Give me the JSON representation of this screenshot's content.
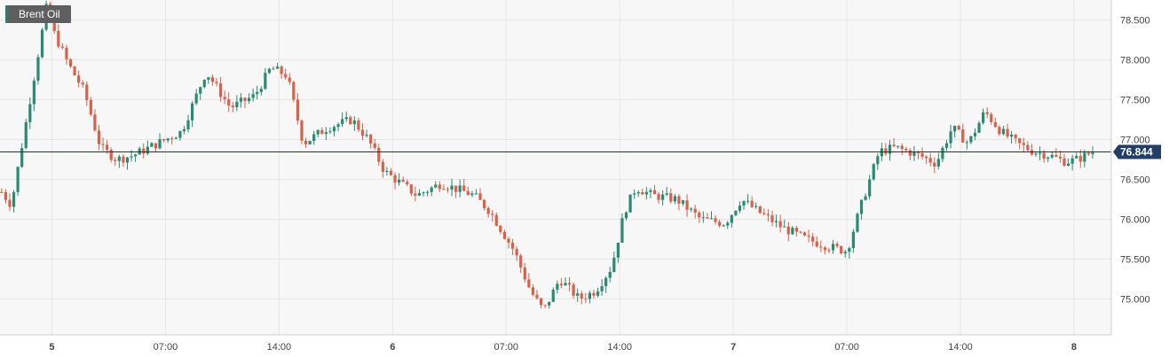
{
  "instrument": {
    "name": "Brent Oil"
  },
  "colors": {
    "up": "#2a8a72",
    "down": "#d9604a",
    "grid": "#e6e6e6",
    "price_line": "#1f2f5a",
    "price_tag_bg": "#233d66",
    "axis": "#cfcfcf",
    "plot_bg": "#f7f7f7"
  },
  "chart_data": {
    "type": "candlestick",
    "title": "Brent Oil",
    "last_price": 76.844,
    "last_price_label": "76.844",
    "y_ticks": [
      "78.500",
      "78.000",
      "77.500",
      "77.000",
      "76.500",
      "76.000",
      "75.500",
      "75.000"
    ],
    "y_tick_values": [
      78.5,
      78.0,
      77.5,
      77.0,
      76.5,
      76.0,
      75.5,
      75.0
    ],
    "ylim": [
      74.55,
      78.75
    ],
    "x_ticks": [
      {
        "label": "5",
        "bold": true,
        "hour": 0
      },
      {
        "label": "07:00",
        "bold": false,
        "hour": 7
      },
      {
        "label": "14:00",
        "bold": false,
        "hour": 14
      },
      {
        "label": "6",
        "bold": true,
        "hour": 21
      },
      {
        "label": "07:00",
        "bold": false,
        "hour": 28
      },
      {
        "label": "14:00",
        "bold": false,
        "hour": 35
      },
      {
        "label": "7",
        "bold": true,
        "hour": 42
      },
      {
        "label": "07:00",
        "bold": false,
        "hour": 49
      },
      {
        "label": "14:00",
        "bold": false,
        "hour": 56
      },
      {
        "label": "8",
        "bold": true,
        "hour": 63
      }
    ],
    "x_range_hours": [
      -3.2,
      65.3
    ],
    "grid": true,
    "keypoints": [
      [
        -3.1,
        76.34
      ],
      [
        -2.5,
        76.18
      ],
      [
        -0.3,
        78.7
      ],
      [
        0.1,
        78.35
      ],
      [
        1.0,
        77.95
      ],
      [
        2.0,
        77.6
      ],
      [
        3.0,
        76.9
      ],
      [
        4.0,
        76.75
      ],
      [
        5.0,
        76.8
      ],
      [
        6.5,
        76.95
      ],
      [
        8.0,
        77.1
      ],
      [
        9.5,
        77.85
      ],
      [
        11.0,
        77.4
      ],
      [
        12.5,
        77.55
      ],
      [
        13.5,
        77.9
      ],
      [
        14.5,
        77.8
      ],
      [
        15.5,
        76.95
      ],
      [
        17.0,
        77.15
      ],
      [
        18.5,
        77.25
      ],
      [
        19.5,
        77.0
      ],
      [
        20.5,
        76.6
      ],
      [
        22.5,
        76.3
      ],
      [
        24.0,
        76.45
      ],
      [
        26.0,
        76.3
      ],
      [
        27.0,
        76.1
      ],
      [
        28.5,
        75.6
      ],
      [
        29.5,
        75.1
      ],
      [
        30.3,
        74.85
      ],
      [
        31.3,
        75.25
      ],
      [
        32.5,
        75.0
      ],
      [
        33.5,
        75.1
      ],
      [
        34.5,
        75.4
      ],
      [
        35.3,
        76.1
      ],
      [
        36.0,
        76.4
      ],
      [
        37.0,
        76.3
      ],
      [
        38.5,
        76.25
      ],
      [
        40.0,
        76.0
      ],
      [
        41.5,
        75.95
      ],
      [
        42.5,
        76.25
      ],
      [
        43.5,
        76.1
      ],
      [
        45.0,
        75.9
      ],
      [
        46.5,
        75.75
      ],
      [
        48.0,
        75.65
      ],
      [
        49.0,
        75.6
      ],
      [
        50.0,
        76.25
      ],
      [
        51.0,
        76.85
      ],
      [
        52.0,
        76.9
      ],
      [
        53.5,
        76.8
      ],
      [
        54.5,
        76.7
      ],
      [
        55.5,
        77.15
      ],
      [
        56.5,
        76.95
      ],
      [
        57.5,
        77.35
      ],
      [
        58.5,
        77.1
      ],
      [
        59.5,
        76.95
      ],
      [
        60.5,
        76.85
      ],
      [
        61.5,
        76.8
      ],
      [
        62.5,
        76.72
      ],
      [
        63.2,
        76.75
      ],
      [
        64.3,
        76.86
      ]
    ]
  }
}
